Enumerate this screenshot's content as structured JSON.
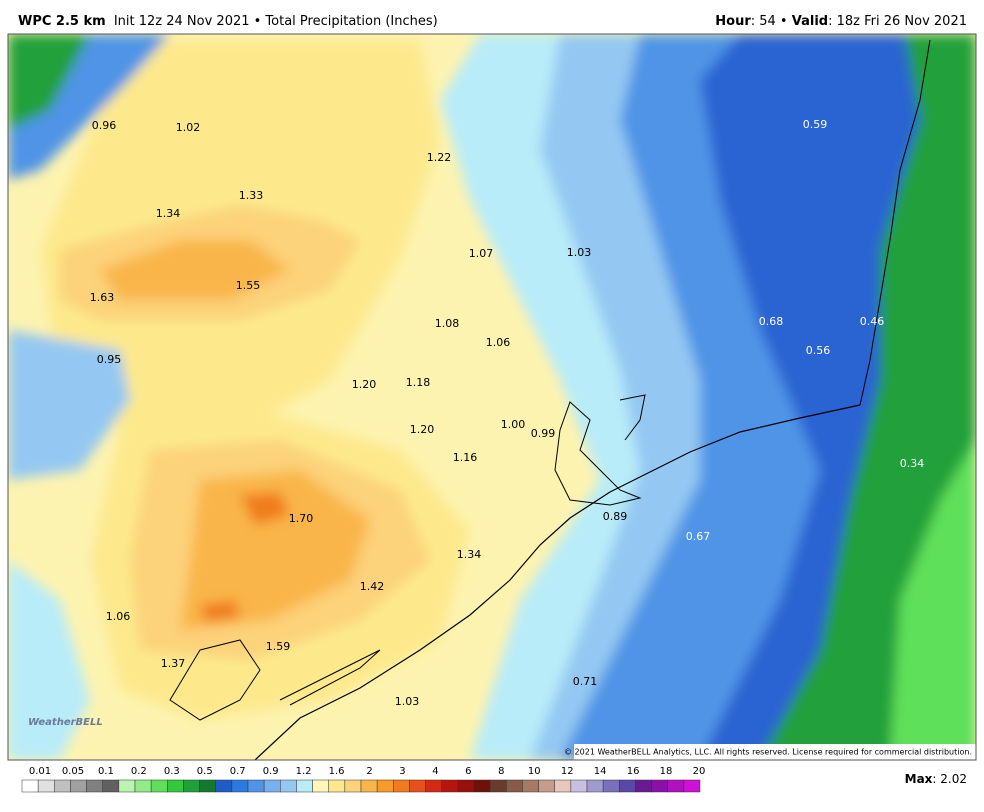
{
  "header": {
    "model": "WPC 2.5 km",
    "init": "Init 12z 24 Nov 2021 • Total Precipitation (Inches)",
    "hour_label": "Hour",
    "hour": ": 54 • ",
    "valid_label": "Valid",
    "valid": ": 18z Fri 26 Nov 2021"
  },
  "map_labels": [
    "0.96",
    "1.02",
    "0.59",
    "1.22",
    "1.33",
    "1.34",
    "1.07",
    "1.03",
    "1.63",
    "1.55",
    "1.08",
    "0.68",
    "0.46",
    "1.06",
    "0.56",
    "0.95",
    "1.20",
    "1.18",
    "1.00",
    "0.99",
    "1.20",
    "1.16",
    "0.34",
    "1.70",
    "0.89",
    "0.67",
    "1.34",
    "1.42",
    "1.06",
    "1.59",
    "1.37",
    "0.71",
    "1.03"
  ],
  "watermark": "WeatherBELL",
  "copyright": "© 2021 WeatherBELL Analytics, LLC. All rights reserved. License required for commercial distribution.",
  "colorbar": {
    "ticks": [
      "0.01",
      "0.05",
      "0.1",
      "0.2",
      "0.3",
      "0.5",
      "0.7",
      "0.9",
      "1.2",
      "1.6",
      "2",
      "3",
      "4",
      "6",
      "8",
      "10",
      "12",
      "14",
      "16",
      "18",
      "20"
    ],
    "colors": [
      "#ffffff",
      "#e0e0e0",
      "#c0c0c0",
      "#a0a0a0",
      "#808080",
      "#606060",
      "#b9f5b0",
      "#90ec86",
      "#5fe05a",
      "#34c83a",
      "#1ea13a",
      "#117a2c",
      "#1f5cc8",
      "#2a7ae0",
      "#4f94e6",
      "#76b0ee",
      "#94c8f2",
      "#b8ecf8",
      "#fff6b8",
      "#fde98c",
      "#fcd27a",
      "#f9b54a",
      "#f79a2a",
      "#f07b1a",
      "#e8501a",
      "#d42a14",
      "#b8140e",
      "#98100c",
      "#701008",
      "#6a3a2a",
      "#8a5a48",
      "#a87a66",
      "#c89c8a",
      "#e8c8bc",
      "#c8c0e0",
      "#a09ad0",
      "#7a70c0",
      "#5a48a8",
      "#6a1a90",
      "#8a10a8",
      "#b010c0",
      "#d010d8"
    ]
  },
  "max_label": "Max",
  "max": ": 2.02"
}
